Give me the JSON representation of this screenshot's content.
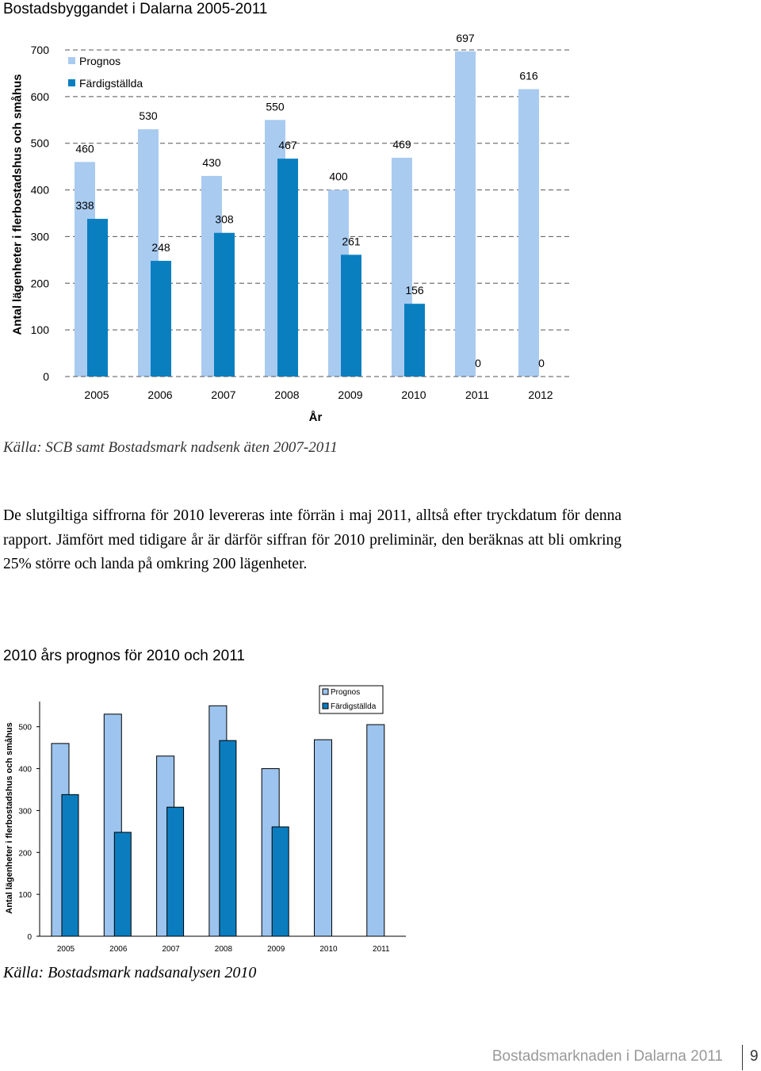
{
  "chart1_block": {
    "title": "Bostadsbyggandet i Dalarna 2005-2011",
    "source": "Källa: SCB samt Bostadsmark nadsenk äten 2007-2011"
  },
  "paragraph": "De slutgiltiga siffrorna för 2010 levereras inte förrän i maj 2011, alltså efter tryckdatum för denna rapport. Jämfört med tidigare år är därför siffran för 2010 preliminär, den beräknas att bli omkring 25% större och landa på omkring 200 lägenheter.",
  "chart2_block": {
    "title": "2010 års prognos för 2010 och 2011",
    "source": "Källa: Bostadsmark nadsanalysen 2010"
  },
  "footer": {
    "text": "Bostadsmarknaden i Dalarna 2011",
    "page": "9"
  },
  "colors": {
    "prognos": "#a9cbf0",
    "fardig": "#0a7fc0",
    "prognos2": "#9cc4ee",
    "fardig2": "#0b7dbf"
  },
  "chart_data": [
    {
      "type": "bar",
      "title": "",
      "xlabel": "År",
      "ylabel": "Antal lägenheter i flerbostadshus och småhus",
      "categories": [
        "2005",
        "2006",
        "2007",
        "2008",
        "2009",
        "2010",
        "2011",
        "2012"
      ],
      "series": [
        {
          "name": "Prognos",
          "values": [
            460,
            530,
            430,
            550,
            400,
            469,
            697,
            616
          ]
        },
        {
          "name": "Färdigställda",
          "values": [
            338,
            248,
            308,
            467,
            261,
            156,
            0,
            0
          ]
        }
      ],
      "yticks": [
        "0",
        "100",
        "200",
        "300",
        "400",
        "500",
        "600",
        "700"
      ],
      "ylim": [
        0,
        700
      ],
      "grid": true,
      "legend": "top-left"
    },
    {
      "type": "bar",
      "title": "",
      "xlabel": "",
      "ylabel": "Antal lägenheter i flerbostadshus och småhus",
      "categories": [
        "2005",
        "2006",
        "2007",
        "2008",
        "2009",
        "2010",
        "2011"
      ],
      "series": [
        {
          "name": "Prognos",
          "values": [
            460,
            530,
            430,
            550,
            400,
            469,
            505
          ]
        },
        {
          "name": "Färdigställda",
          "values": [
            338,
            248,
            308,
            467,
            261,
            null,
            null
          ]
        }
      ],
      "yticks": [
        "0",
        "100",
        "200",
        "300",
        "400",
        "500"
      ],
      "ylim": [
        0,
        560
      ],
      "grid": false,
      "legend": "top-right"
    }
  ]
}
